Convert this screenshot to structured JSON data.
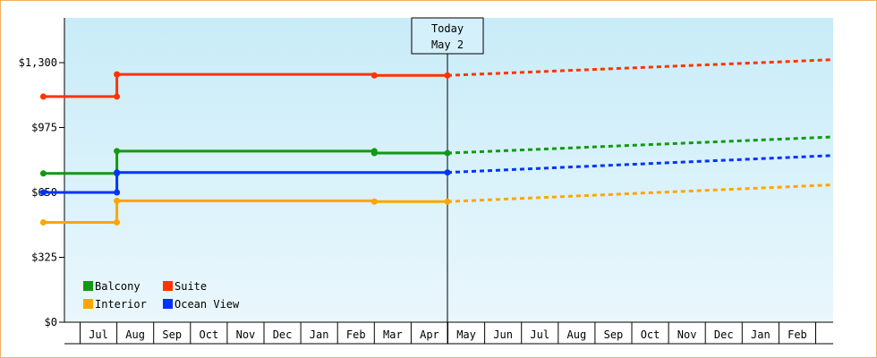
{
  "chart_data": {
    "type": "line",
    "title": "",
    "xlabel": "",
    "ylabel": "",
    "ylim": [
      0,
      1300
    ],
    "y_ticks": [
      {
        "value": 0,
        "label": "$0"
      },
      {
        "value": 325,
        "label": "$325"
      },
      {
        "value": 650,
        "label": "$650"
      },
      {
        "value": 975,
        "label": "$975"
      },
      {
        "value": 1300,
        "label": "$1,300"
      }
    ],
    "x_ticks": [
      "Jul",
      "Aug",
      "Sep",
      "Oct",
      "Nov",
      "Dec",
      "Jan",
      "Feb",
      "Mar",
      "Apr",
      "May",
      "Jun",
      "Jul",
      "Aug",
      "Sep",
      "Oct",
      "Nov",
      "Dec",
      "Jan",
      "Feb"
    ],
    "today": {
      "line1": "Today",
      "line2": "May 2"
    },
    "legend": {
      "placement": "bottom-left"
    },
    "background": {
      "gradient_top": "#c8ecf8",
      "gradient_bottom": "#eaf7fc"
    },
    "series": [
      {
        "name": "Balcony",
        "color": "#119911",
        "actual": [
          [
            "Jun 1",
            745
          ],
          [
            "Aug 1",
            745
          ],
          [
            "Aug 1",
            857
          ],
          [
            "Mar 1",
            857
          ],
          [
            "Mar 1",
            847
          ],
          [
            "May 2",
            847
          ]
        ],
        "markers": [
          [
            "Jun 1",
            745
          ],
          [
            "Aug 1",
            745
          ],
          [
            "Aug 1",
            857
          ],
          [
            "Mar 1",
            857
          ],
          [
            "Mar 1",
            847
          ],
          [
            "May 2",
            847
          ]
        ],
        "forecast": [
          [
            "May 2",
            847
          ],
          [
            "Feb 28",
            928
          ]
        ]
      },
      {
        "name": "Suite",
        "color": "#ff3300",
        "actual": [
          [
            "Jun 1",
            1130
          ],
          [
            "Aug 1",
            1130
          ],
          [
            "Aug 1",
            1241
          ],
          [
            "Mar 1",
            1241
          ],
          [
            "Mar 1",
            1236
          ],
          [
            "May 2",
            1236
          ]
        ],
        "markers": [
          [
            "Jun 1",
            1130
          ],
          [
            "Aug 1",
            1130
          ],
          [
            "Aug 1",
            1241
          ],
          [
            "Mar 1",
            1236
          ],
          [
            "May 2",
            1236
          ]
        ],
        "forecast": [
          [
            "May 2",
            1236
          ],
          [
            "Feb 28",
            1315
          ]
        ]
      },
      {
        "name": "Interior",
        "color": "#ffa500",
        "actual": [
          [
            "Jun 1",
            500
          ],
          [
            "Aug 1",
            500
          ],
          [
            "Aug 1",
            608
          ],
          [
            "Mar 1",
            608
          ],
          [
            "Mar 1",
            604
          ],
          [
            "May 2",
            604
          ]
        ],
        "markers": [
          [
            "Jun 1",
            500
          ],
          [
            "Aug 1",
            500
          ],
          [
            "Aug 1",
            608
          ],
          [
            "Mar 1",
            604
          ],
          [
            "May 2",
            604
          ]
        ],
        "forecast": [
          [
            "May 2",
            604
          ],
          [
            "Feb 28",
            688
          ]
        ]
      },
      {
        "name": "Ocean View",
        "color": "#0033ff",
        "actual": [
          [
            "Jun 1",
            650
          ],
          [
            "Aug 1",
            650
          ],
          [
            "Aug 1",
            750
          ],
          [
            "May 2",
            750
          ]
        ],
        "markers": [
          [
            "Jun 1",
            650
          ],
          [
            "Aug 1",
            650
          ],
          [
            "Aug 1",
            750
          ],
          [
            "May 2",
            750
          ]
        ],
        "forecast": [
          [
            "May 2",
            750
          ],
          [
            "Feb 28",
            835
          ]
        ]
      }
    ]
  }
}
